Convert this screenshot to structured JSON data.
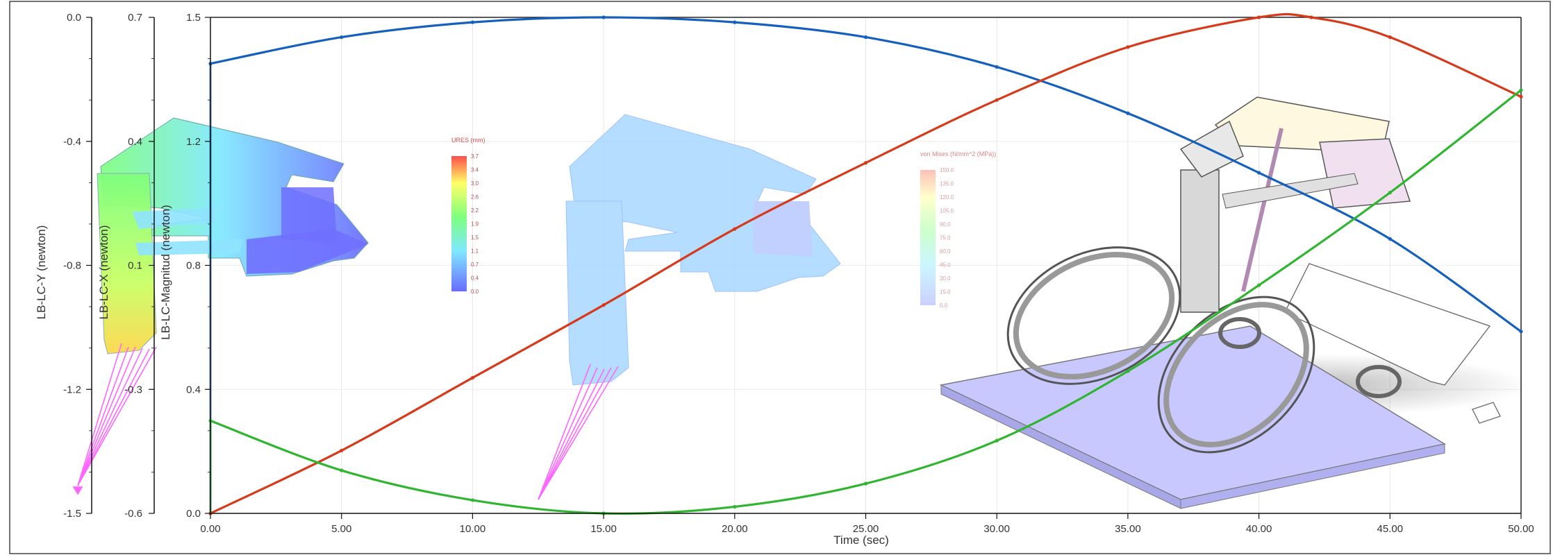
{
  "chart_data": {
    "type": "line",
    "xlabel": "Time (sec)",
    "xlim": [
      0,
      50
    ],
    "x_ticks": [
      "0.00",
      "5.00",
      "10.00",
      "15.00",
      "20.00",
      "25.00",
      "30.00",
      "35.00",
      "40.00",
      "45.00",
      "50.00"
    ],
    "grid": true,
    "axes": [
      {
        "label": "LB-LC-Y (newton)",
        "range": [
          -1.5,
          0.0
        ],
        "ticks": [
          "0.0",
          "-0.4",
          "-0.8",
          "-1.2",
          "-1.5"
        ]
      },
      {
        "label": "LB-LC-X (newton)",
        "range": [
          -0.6,
          0.7
        ],
        "ticks": [
          "0.7",
          "0.4",
          "0.1",
          "-0.3",
          "-0.6"
        ]
      },
      {
        "label": "LB-LC-Magnitud (newton)",
        "range": [
          0.0,
          1.5
        ],
        "ticks": [
          "1.5",
          "1.2",
          "0.8",
          "0.4",
          "0.0"
        ]
      }
    ],
    "series": [
      {
        "color": "#1560bd",
        "x": [
          0,
          5,
          10,
          15,
          20,
          25,
          30,
          35,
          40,
          45,
          50
        ],
        "y": [
          1.36,
          1.44,
          1.485,
          1.5,
          1.485,
          1.44,
          1.35,
          1.21,
          1.03,
          0.83,
          0.55
        ]
      },
      {
        "color": "#d63a1a",
        "x": [
          0,
          5,
          10,
          15,
          20,
          25,
          30,
          35,
          40,
          42,
          45,
          50
        ],
        "y": [
          0.0,
          0.19,
          0.41,
          0.63,
          0.86,
          1.06,
          1.25,
          1.41,
          1.5,
          1.5,
          1.44,
          1.26
        ]
      },
      {
        "color": "#2fb52f",
        "x": [
          0,
          5,
          10,
          15,
          20,
          25,
          30,
          35,
          40,
          45,
          50
        ],
        "y": [
          0.28,
          0.13,
          0.04,
          0.0,
          0.02,
          0.09,
          0.22,
          0.43,
          0.69,
          0.97,
          1.28
        ]
      }
    ]
  },
  "overlay": {
    "legend1": {
      "title": "URES (mm)",
      "ticks": [
        "3.7",
        "3.4",
        "3.0",
        "2.6",
        "2.2",
        "1.9",
        "1.5",
        "1.1",
        "0.7",
        "0.4",
        "0.0"
      ]
    },
    "legend2": {
      "title": "von Mises (N/mm^2 (MPa))",
      "ticks": [
        "150.0",
        "135.0",
        "120.0",
        "105.0",
        "90.0",
        "75.0",
        "60.0",
        "45.0",
        "30.0",
        "15.0",
        "0.0"
      ]
    },
    "colors": {
      "rainbow_top": "#ff4d4d",
      "rainbow_bottom": "#6b6bff",
      "force_arrows": "#ff66ff",
      "platform": "#c8c8ff"
    }
  }
}
